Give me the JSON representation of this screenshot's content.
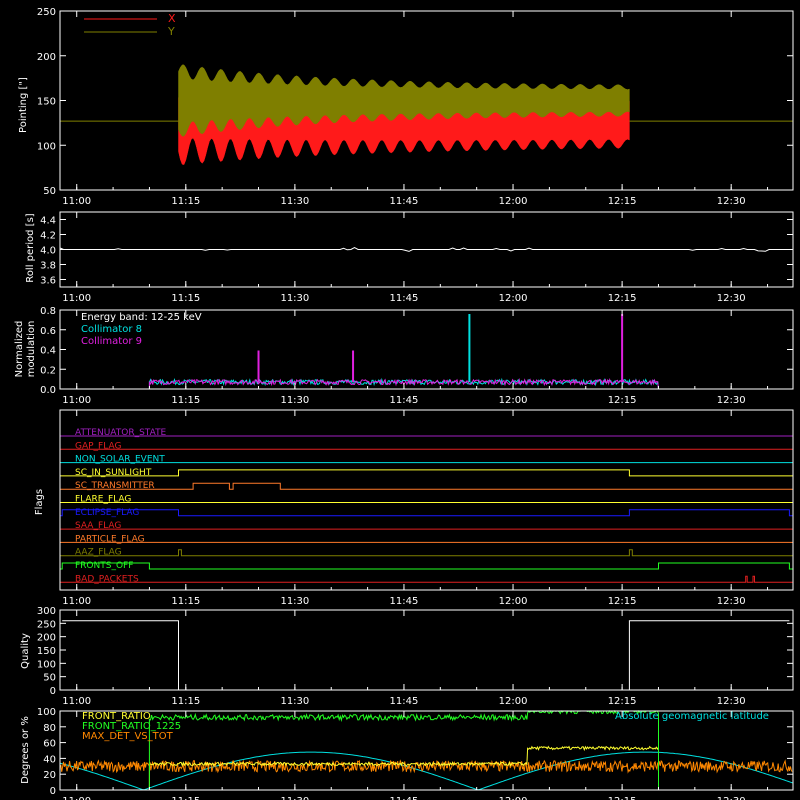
{
  "colors": {
    "background": "#000000",
    "axes": "#ffffff",
    "red": "#ff1a1a",
    "olive": "#7f7f00",
    "white": "#ffffff",
    "cyan": "#00e0e0",
    "magenta": "#e020e0",
    "orange": "#ff8800",
    "yellow": "#ffff30",
    "green": "#22ff22",
    "blue": "#1a1aff",
    "purple": "#a020c0",
    "flag_red": "#e02020",
    "flag_orange": "#ff7a2a"
  },
  "x_time_ticks": [
    "11:00",
    "11:15",
    "11:30",
    "11:45",
    "12:00",
    "12:15",
    "12:30"
  ],
  "chart_data": [
    {
      "id": "pointing",
      "type": "area",
      "ylabel": "Pointing [\"]",
      "ylim": [
        50,
        250
      ],
      "yticks": [
        50,
        100,
        150,
        200,
        250
      ],
      "legend": [
        "X",
        "Y"
      ],
      "reference_level": 127,
      "series": [
        {
          "name": "X",
          "color": "red",
          "start": "11:14",
          "end": "12:16",
          "center": 127,
          "amplitude_start": 60,
          "amplitude_end": 50
        },
        {
          "name": "Y",
          "color": "olive",
          "start": "11:14",
          "end": "12:16",
          "center": 150,
          "amplitude_start": 65,
          "amplitude_end": 28
        }
      ]
    },
    {
      "id": "roll",
      "type": "line",
      "ylabel": "Roll period [s]",
      "ylim": [
        3.5,
        4.5
      ],
      "yticks": [
        "3.6",
        "3.8",
        "4.0",
        "4.2",
        "4.4"
      ],
      "series": [
        {
          "name": "",
          "color": "white",
          "value": 4.0
        }
      ]
    },
    {
      "id": "modulation",
      "type": "line",
      "ylabel": [
        "Normalized",
        "modulation"
      ],
      "ylim": [
        0,
        0.8
      ],
      "yticks": [
        "0.0",
        "0.2",
        "0.4",
        "0.6",
        "0.8"
      ],
      "annotations": [
        "Energy band: 12-25 keV",
        "Collimator 8",
        "Collimator 9"
      ],
      "series": [
        {
          "name": "Collimator 8",
          "color": "cyan",
          "start": "11:10",
          "end": "12:20",
          "baseline": 0.07,
          "spikes": [
            {
              "t": "11:54",
              "v": 0.76
            }
          ]
        },
        {
          "name": "Collimator 9",
          "color": "magenta",
          "start": "11:10",
          "end": "12:20",
          "baseline": 0.07,
          "spikes": [
            {
              "t": "11:25",
              "v": 0.39
            },
            {
              "t": "11:38",
              "v": 0.39
            },
            {
              "t": "12:15",
              "v": 0.76
            }
          ]
        }
      ]
    },
    {
      "id": "flags",
      "type": "line",
      "ylabel": "Flags",
      "flags": [
        {
          "label": "ATTENUATOR_STATE",
          "color": "purple",
          "high": []
        },
        {
          "label": "GAP_FLAG",
          "color": "flag_red",
          "high": []
        },
        {
          "label": "NON_SOLAR_EVENT",
          "color": "cyan",
          "high": []
        },
        {
          "label": "SC_IN_SUNLIGHT",
          "color": "yellow",
          "high": [
            [
              "11:14",
              "12:16"
            ]
          ]
        },
        {
          "label": "SC_TRANSMITTER",
          "color": "flag_orange",
          "high": [
            [
              "11:16",
              "11:21"
            ],
            [
              "11:21.5",
              "11:28"
            ]
          ]
        },
        {
          "label": "FLARE_FLAG",
          "color": "yellow",
          "high": []
        },
        {
          "label": "ECLIPSE_FLAG",
          "color": "blue",
          "high": [
            [
              "10:58",
              "11:14"
            ],
            [
              "12:16",
              "12:38"
            ]
          ]
        },
        {
          "label": "SAA_FLAG",
          "color": "flag_red",
          "high": []
        },
        {
          "label": "PARTICLE_FLAG",
          "color": "flag_orange",
          "high": []
        },
        {
          "label": "AAZ_FLAG",
          "color": "olive",
          "high": [
            [
              "11:14",
              "11:14.4"
            ],
            [
              "12:16",
              "12:16.4"
            ]
          ]
        },
        {
          "label": "FRONTS_OFF",
          "color": "green",
          "high": [
            [
              "10:58",
              "11:10"
            ],
            [
              "12:20",
              "12:38"
            ]
          ]
        },
        {
          "label": "BAD_PACKETS",
          "color": "flag_red",
          "high": [
            [
              "12:32",
              "12:32.2"
            ],
            [
              "12:33",
              "12:33.2"
            ]
          ]
        }
      ]
    },
    {
      "id": "quality",
      "type": "line",
      "ylabel": "Quality",
      "ylim": [
        0,
        300
      ],
      "yticks": [
        "0",
        "50",
        "100",
        "150",
        "200",
        "250",
        "300"
      ],
      "series": [
        {
          "name": "",
          "color": "white",
          "segments": [
            [
              "10:58",
              "11:14",
              260
            ],
            [
              "11:14",
              "12:16",
              0
            ],
            [
              "12:16",
              "12:38",
              260
            ]
          ]
        }
      ]
    },
    {
      "id": "misc",
      "type": "line",
      "ylabel": "Degrees or %",
      "ylim": [
        0,
        100
      ],
      "yticks": [
        "0",
        "20",
        "40",
        "60",
        "80",
        "100"
      ],
      "legend": [
        "FRONT_RATIO",
        "FRONT_RATIO_1225",
        "MAX_DET_VS_TOT",
        "Absolute geomagnetic latitude"
      ],
      "series": [
        {
          "name": "FRONT_RATIO",
          "color": "yellow",
          "segments": [
            [
              "11:10",
              "12:02",
              33
            ],
            [
              "12:02",
              "12:20",
              53
            ]
          ]
        },
        {
          "name": "FRONT_RATIO_1225",
          "color": "green",
          "segments": [
            [
              "11:10",
              "12:02",
              92
            ],
            [
              "12:02",
              "12:20",
              100
            ]
          ]
        },
        {
          "name": "MAX_DET_VS_TOT",
          "color": "orange",
          "baseline": 30
        },
        {
          "name": "Absolute geomagnetic latitude",
          "color": "cyan",
          "amplitude": 48,
          "period_min": 46,
          "phase_min": 11.5
        }
      ]
    }
  ]
}
